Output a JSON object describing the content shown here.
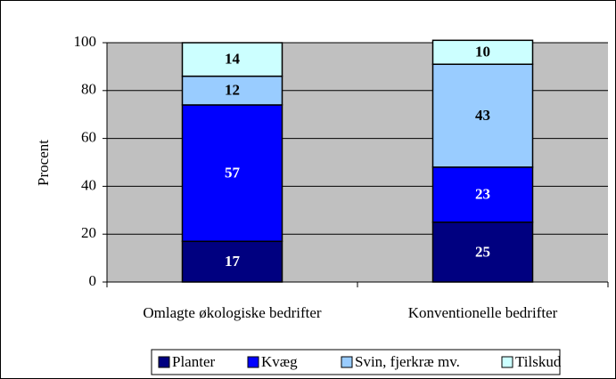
{
  "chart_data": {
    "type": "stacked_bar",
    "ylabel": "Procent",
    "categories": [
      "Omlagte økologiske bedrifter",
      "Konventionelle bedrifter"
    ],
    "series": [
      {
        "name": "Planter",
        "color": "#000080",
        "label_color": "#ffffff",
        "values": [
          17,
          25
        ]
      },
      {
        "name": "Kvæg",
        "color": "#0000ff",
        "label_color": "#ffffff",
        "values": [
          57,
          23
        ]
      },
      {
        "name": "Svin, fjerkræ mv.",
        "color": "#99ccff",
        "label_color": "#000000",
        "values": [
          12,
          43
        ]
      },
      {
        "name": "Tilskud",
        "color": "#ccffff",
        "label_color": "#000000",
        "values": [
          14,
          10
        ]
      }
    ],
    "ylim": [
      0,
      100
    ],
    "yticks": [
      0,
      20,
      40,
      60,
      80,
      100
    ],
    "grid": true,
    "legend": "bottom"
  }
}
